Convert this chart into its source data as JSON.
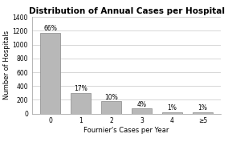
{
  "categories": [
    "0",
    "1",
    "2",
    "3",
    "4",
    "≥5"
  ],
  "values": [
    1170,
    300,
    177,
    71,
    18,
    18
  ],
  "percentages": [
    "66%",
    "17%",
    "10%",
    "4%",
    "1%",
    "1%"
  ],
  "bar_color": "#b8b8b8",
  "bar_edgecolor": "#888888",
  "title": "Distribution of Annual Cases per Hospital",
  "xlabel": "Fournier's Cases per Year",
  "ylabel": "Number of Hospitals",
  "ylim": [
    0,
    1400
  ],
  "yticks": [
    0,
    200,
    400,
    600,
    800,
    1000,
    1200,
    1400
  ],
  "title_fontsize": 7.5,
  "label_fontsize": 6.0,
  "tick_fontsize": 5.5,
  "pct_fontsize": 5.5,
  "background_color": "#ffffff",
  "grid_color": "#d0d0d0"
}
